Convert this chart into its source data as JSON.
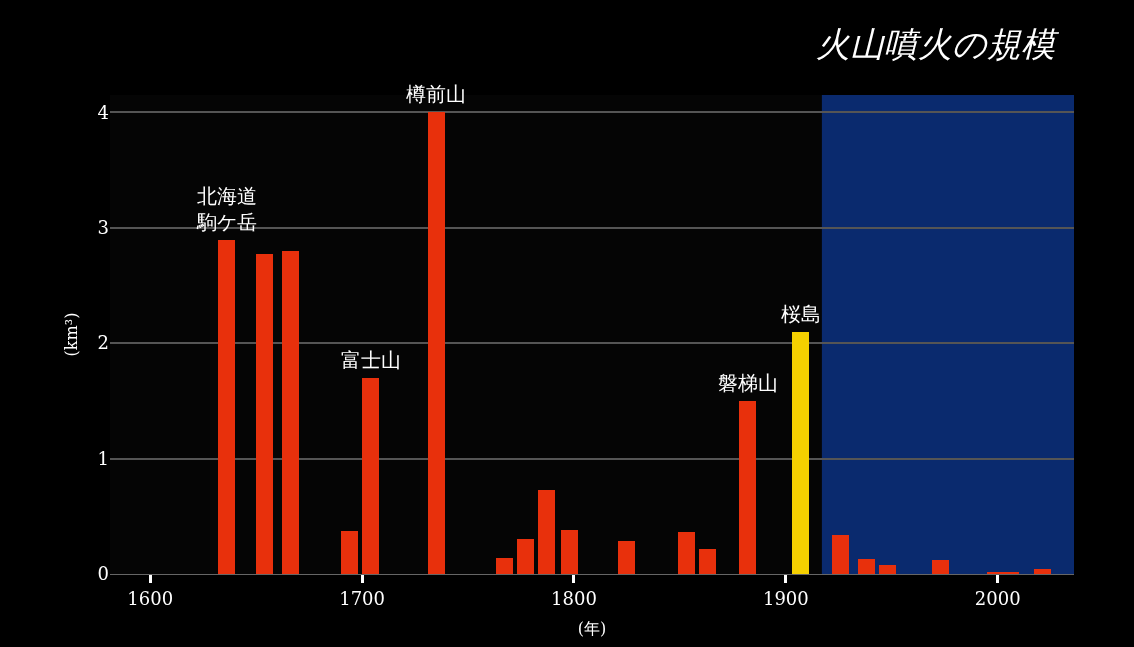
{
  "chart_data": {
    "type": "bar",
    "title": "火山噴火の規模",
    "xlabel": "(年)",
    "ylabel": "(km³)",
    "x": [
      1636,
      1654,
      1666,
      1694,
      1704,
      1735,
      1767,
      1777,
      1787,
      1798,
      1825,
      1853,
      1863,
      1882,
      1907,
      1926,
      1938,
      1948,
      1973,
      1999,
      2006,
      2021
    ],
    "values": [
      2.89,
      2.77,
      2.8,
      0.37,
      1.7,
      4.0,
      0.14,
      0.3,
      0.73,
      0.38,
      0.29,
      0.36,
      0.22,
      1.5,
      2.1,
      0.34,
      0.13,
      0.08,
      0.12,
      0.02,
      0.02,
      0.04
    ],
    "colors": [
      "#e8300c",
      "#e8300c",
      "#e8300c",
      "#e8300c",
      "#e8300c",
      "#e8300c",
      "#e8300c",
      "#e8300c",
      "#e8300c",
      "#e8300c",
      "#e8300c",
      "#e8300c",
      "#e8300c",
      "#e8300c",
      "#f5d000",
      "#e8300c",
      "#e8300c",
      "#e8300c",
      "#e8300c",
      "#e8300c",
      "#e8300c",
      "#e8300c"
    ],
    "xlim": [
      1581,
      2036
    ],
    "ylim": [
      0,
      4.15
    ],
    "xticks": [
      1600,
      1700,
      1800,
      1900,
      2000
    ],
    "yticks": [
      0,
      1,
      2,
      3,
      4
    ],
    "grid": "y",
    "bands": [
      {
        "axis": "x",
        "from": 1917,
        "to": 2036,
        "color": "#0a2a6e"
      }
    ],
    "annotations": [
      {
        "text": "北海道",
        "x": 1636,
        "y": 2.89
      },
      {
        "text": "駒ケ岳",
        "x": 1636,
        "y": 2.89
      },
      {
        "text": "富士山",
        "x": 1704,
        "y": 1.7
      },
      {
        "text": "樽前山",
        "x": 1735,
        "y": 4.0
      },
      {
        "text": "磐梯山",
        "x": 1882,
        "y": 1.5
      },
      {
        "text": "桜島",
        "x": 1907,
        "y": 2.1
      }
    ]
  }
}
